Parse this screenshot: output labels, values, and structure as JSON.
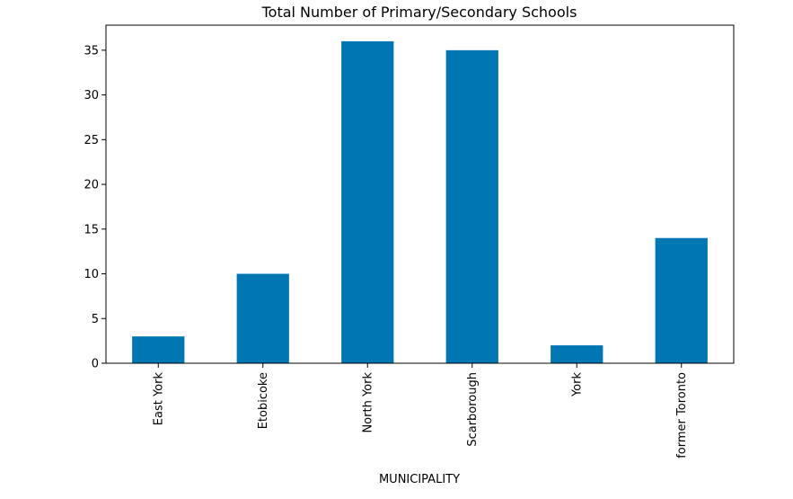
{
  "chart_data": {
    "type": "bar",
    "title": "Total Number of Primary/Secondary Schools",
    "xlabel": "MUNICIPALITY",
    "ylabel": "",
    "categories": [
      "East York",
      "Etobicoke",
      "North York",
      "Scarborough",
      "York",
      "former Toronto"
    ],
    "values": [
      3,
      10,
      36,
      35,
      2,
      14
    ],
    "ylim": [
      0,
      37.8
    ],
    "yticks": [
      0,
      5,
      10,
      15,
      20,
      25,
      30,
      35
    ],
    "grid": false,
    "legend": "none",
    "bar_color": "#0077b3",
    "x_tick_rotation": "vertical"
  }
}
